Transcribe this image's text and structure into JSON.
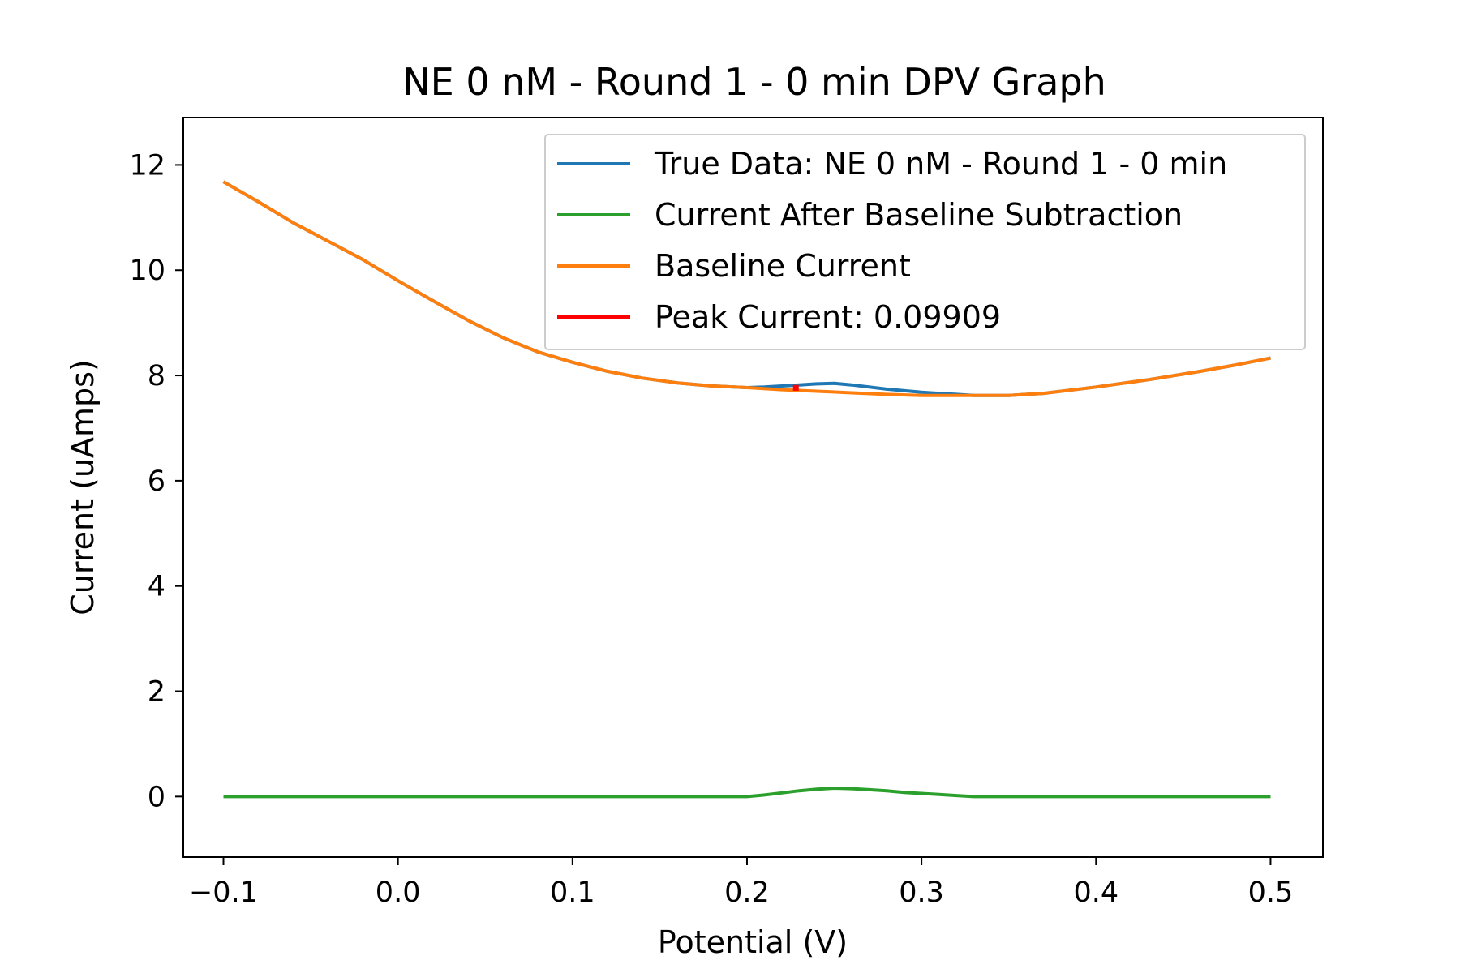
{
  "chart_data": {
    "type": "line",
    "title": "NE 0 nM - Round 1 - 0 min DPV Graph",
    "xlabel": "Potential (V)",
    "ylabel": "Current (uAmps)",
    "xlim": [
      -0.123,
      0.53
    ],
    "ylim": [
      -1.15,
      12.9
    ],
    "x_ticks": [
      -0.1,
      0.0,
      0.1,
      0.2,
      0.3,
      0.4,
      0.5
    ],
    "x_tick_labels": [
      "−0.1",
      "0.0",
      "0.1",
      "0.2",
      "0.3",
      "0.4",
      "0.5"
    ],
    "y_ticks": [
      0,
      2,
      4,
      6,
      8,
      10,
      12
    ],
    "y_tick_labels": [
      "0",
      "2",
      "4",
      "6",
      "8",
      "10",
      "12"
    ],
    "grid": false,
    "legend_position": "top-right",
    "series": [
      {
        "name": "True Data: NE 0 nM - Round 1 - 0 min",
        "color": "#1f77b4",
        "points": [
          [
            -0.1,
            11.68
          ],
          [
            -0.08,
            11.3
          ],
          [
            -0.06,
            10.9
          ],
          [
            -0.04,
            10.55
          ],
          [
            -0.02,
            10.2
          ],
          [
            0.0,
            9.8
          ],
          [
            0.02,
            9.42
          ],
          [
            0.04,
            9.05
          ],
          [
            0.06,
            8.72
          ],
          [
            0.08,
            8.45
          ],
          [
            0.1,
            8.25
          ],
          [
            0.12,
            8.08
          ],
          [
            0.14,
            7.95
          ],
          [
            0.16,
            7.86
          ],
          [
            0.18,
            7.8
          ],
          [
            0.2,
            7.77
          ],
          [
            0.21,
            7.78
          ],
          [
            0.22,
            7.8
          ],
          [
            0.23,
            7.82
          ],
          [
            0.24,
            7.84
          ],
          [
            0.25,
            7.85
          ],
          [
            0.26,
            7.82
          ],
          [
            0.28,
            7.74
          ],
          [
            0.3,
            7.68
          ],
          [
            0.32,
            7.64
          ],
          [
            0.33,
            7.62
          ],
          [
            0.35,
            7.62
          ],
          [
            0.37,
            7.66
          ],
          [
            0.4,
            7.78
          ],
          [
            0.43,
            7.92
          ],
          [
            0.46,
            8.08
          ],
          [
            0.48,
            8.2
          ],
          [
            0.5,
            8.33
          ]
        ]
      },
      {
        "name": "Current After Baseline Subtraction",
        "color": "#2ca02c",
        "points": [
          [
            -0.1,
            0.0
          ],
          [
            0.2,
            0.0
          ],
          [
            0.21,
            0.03
          ],
          [
            0.22,
            0.07
          ],
          [
            0.23,
            0.11
          ],
          [
            0.24,
            0.14
          ],
          [
            0.25,
            0.16
          ],
          [
            0.26,
            0.15
          ],
          [
            0.27,
            0.13
          ],
          [
            0.28,
            0.11
          ],
          [
            0.29,
            0.08
          ],
          [
            0.3,
            0.06
          ],
          [
            0.31,
            0.04
          ],
          [
            0.32,
            0.02
          ],
          [
            0.33,
            0.0
          ],
          [
            0.5,
            0.0
          ]
        ]
      },
      {
        "name": "Baseline Current",
        "color": "#ff7f0e",
        "points": [
          [
            -0.1,
            11.68
          ],
          [
            -0.08,
            11.3
          ],
          [
            -0.06,
            10.9
          ],
          [
            -0.04,
            10.55
          ],
          [
            -0.02,
            10.2
          ],
          [
            0.0,
            9.8
          ],
          [
            0.02,
            9.42
          ],
          [
            0.04,
            9.05
          ],
          [
            0.06,
            8.72
          ],
          [
            0.08,
            8.45
          ],
          [
            0.1,
            8.25
          ],
          [
            0.12,
            8.08
          ],
          [
            0.14,
            7.95
          ],
          [
            0.16,
            7.86
          ],
          [
            0.18,
            7.8
          ],
          [
            0.2,
            7.77
          ],
          [
            0.22,
            7.73
          ],
          [
            0.24,
            7.7
          ],
          [
            0.26,
            7.67
          ],
          [
            0.28,
            7.64
          ],
          [
            0.3,
            7.62
          ],
          [
            0.32,
            7.62
          ],
          [
            0.33,
            7.62
          ],
          [
            0.35,
            7.62
          ],
          [
            0.37,
            7.66
          ],
          [
            0.4,
            7.78
          ],
          [
            0.43,
            7.92
          ],
          [
            0.46,
            8.08
          ],
          [
            0.48,
            8.2
          ],
          [
            0.5,
            8.33
          ]
        ]
      }
    ],
    "peak": {
      "name": "Peak Current: 0.09909",
      "color": "#ff0000",
      "x": 0.228,
      "y_low": 7.71,
      "y_high": 7.82
    }
  }
}
